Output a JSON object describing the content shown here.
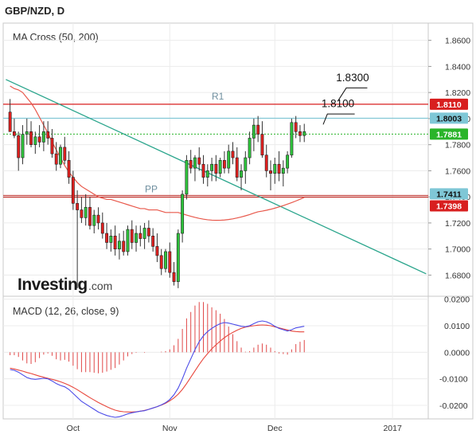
{
  "header": {
    "symbol_label": "GBP/NZD, D"
  },
  "colors": {
    "up": "#2fc43c",
    "down": "#e0201f",
    "wick": "#333333",
    "ma50": "#e8584b",
    "ma200": "#d0b0b0",
    "trendline": "#2aa58c",
    "r1": "#d81f1f",
    "pp": "#c0302b",
    "resistance": "#7fc7d6",
    "current": "#2ab42a",
    "macd": "#4b4be8",
    "signal": "#e8473c",
    "hist": "#e04848"
  },
  "chart_data": [
    {
      "type": "candlestick",
      "title": "MA Cross (50, 200)",
      "ylim": [
        1.665,
        1.872
      ],
      "yticks": [
        "1.6800",
        "1.7000",
        "1.7200",
        "1.7400",
        "1.7600",
        "1.7800",
        "1.8000",
        "1.8200",
        "1.8400",
        "1.8600"
      ],
      "ytick_values": [
        1.68,
        1.7,
        1.72,
        1.74,
        1.76,
        1.78,
        1.8,
        1.82,
        1.84,
        1.86
      ],
      "xticks": [
        {
          "label": "Oct",
          "index": 15
        },
        {
          "label": "Nov",
          "index": 38
        },
        {
          "label": "Dec",
          "index": 63
        },
        {
          "label": "2017",
          "index": 91
        }
      ],
      "x_count": 100,
      "candles": [
        [
          1.805,
          1.815,
          1.79,
          1.79
        ],
        [
          1.79,
          1.8,
          1.785,
          1.787
        ],
        [
          1.787,
          1.79,
          1.76,
          1.77
        ],
        [
          1.77,
          1.795,
          1.765,
          1.788
        ],
        [
          1.788,
          1.8,
          1.78,
          1.79
        ],
        [
          1.79,
          1.798,
          1.778,
          1.78
        ],
        [
          1.78,
          1.79,
          1.773,
          1.786
        ],
        [
          1.786,
          1.795,
          1.778,
          1.782
        ],
        [
          1.782,
          1.798,
          1.775,
          1.79
        ],
        [
          1.79,
          1.798,
          1.78,
          1.785
        ],
        [
          1.785,
          1.792,
          1.77,
          1.773
        ],
        [
          1.773,
          1.782,
          1.76,
          1.765
        ],
        [
          1.765,
          1.78,
          1.762,
          1.778
        ],
        [
          1.778,
          1.786,
          1.765,
          1.768
        ],
        [
          1.768,
          1.775,
          1.75,
          1.755
        ],
        [
          1.755,
          1.76,
          1.73,
          1.735
        ],
        [
          1.735,
          1.745,
          1.67,
          1.73
        ],
        [
          1.73,
          1.74,
          1.72,
          1.724
        ],
        [
          1.724,
          1.742,
          1.718,
          1.732
        ],
        [
          1.732,
          1.74,
          1.715,
          1.718
        ],
        [
          1.718,
          1.73,
          1.712,
          1.726
        ],
        [
          1.726,
          1.732,
          1.715,
          1.72
        ],
        [
          1.72,
          1.728,
          1.708,
          1.712
        ],
        [
          1.712,
          1.72,
          1.7,
          1.705
        ],
        [
          1.705,
          1.715,
          1.698,
          1.71
        ],
        [
          1.71,
          1.718,
          1.695,
          1.7
        ],
        [
          1.7,
          1.712,
          1.692,
          1.706
        ],
        [
          1.706,
          1.714,
          1.695,
          1.698
        ],
        [
          1.698,
          1.718,
          1.695,
          1.715
        ],
        [
          1.715,
          1.722,
          1.7,
          1.705
        ],
        [
          1.705,
          1.718,
          1.698,
          1.712
        ],
        [
          1.712,
          1.718,
          1.702,
          1.708
        ],
        [
          1.708,
          1.72,
          1.7,
          1.716
        ],
        [
          1.716,
          1.722,
          1.705,
          1.71
        ],
        [
          1.71,
          1.716,
          1.698,
          1.702
        ],
        [
          1.702,
          1.712,
          1.69,
          1.695
        ],
        [
          1.695,
          1.7,
          1.68,
          1.685
        ],
        [
          1.685,
          1.7,
          1.682,
          1.698
        ],
        [
          1.698,
          1.705,
          1.678,
          1.682
        ],
        [
          1.682,
          1.69,
          1.672,
          1.675
        ],
        [
          1.675,
          1.715,
          1.67,
          1.712
        ],
        [
          1.712,
          1.745,
          1.705,
          1.742
        ],
        [
          1.742,
          1.772,
          1.738,
          1.768
        ],
        [
          1.768,
          1.776,
          1.758,
          1.762
        ],
        [
          1.762,
          1.772,
          1.752,
          1.77
        ],
        [
          1.77,
          1.778,
          1.76,
          1.765
        ],
        [
          1.765,
          1.772,
          1.75,
          1.755
        ],
        [
          1.755,
          1.765,
          1.748,
          1.76
        ],
        [
          1.76,
          1.77,
          1.752,
          1.765
        ],
        [
          1.765,
          1.772,
          1.752,
          1.758
        ],
        [
          1.758,
          1.77,
          1.755,
          1.768
        ],
        [
          1.768,
          1.775,
          1.758,
          1.762
        ],
        [
          1.762,
          1.78,
          1.758,
          1.775
        ],
        [
          1.775,
          1.782,
          1.765,
          1.77
        ],
        [
          1.77,
          1.778,
          1.752,
          1.755
        ],
        [
          1.755,
          1.765,
          1.745,
          1.76
        ],
        [
          1.76,
          1.775,
          1.75,
          1.77
        ],
        [
          1.77,
          1.79,
          1.765,
          1.785
        ],
        [
          1.785,
          1.8,
          1.775,
          1.795
        ],
        [
          1.795,
          1.802,
          1.782,
          1.788
        ],
        [
          1.788,
          1.798,
          1.77,
          1.772
        ],
        [
          1.772,
          1.78,
          1.755,
          1.76
        ],
        [
          1.76,
          1.768,
          1.745,
          1.758
        ],
        [
          1.758,
          1.77,
          1.75,
          1.765
        ],
        [
          1.765,
          1.775,
          1.752,
          1.758
        ],
        [
          1.758,
          1.768,
          1.748,
          1.762
        ],
        [
          1.762,
          1.775,
          1.758,
          1.772
        ],
        [
          1.772,
          1.8,
          1.77,
          1.797
        ],
        [
          1.797,
          1.802,
          1.785,
          1.79
        ],
        [
          1.79,
          1.795,
          1.782,
          1.787
        ],
        [
          1.787,
          1.796,
          1.782,
          1.79
        ]
      ],
      "ma50": [
        1.825,
        1.823,
        1.822,
        1.82,
        1.816,
        1.812,
        1.807,
        1.801,
        1.795,
        1.789,
        1.782,
        1.776,
        1.77,
        1.764,
        1.759,
        1.755,
        1.751,
        1.748,
        1.746,
        1.744,
        1.742,
        1.74,
        1.739,
        1.738,
        1.738,
        1.737,
        1.736,
        1.735,
        1.734,
        1.733,
        1.732,
        1.731,
        1.731,
        1.73,
        1.73,
        1.73,
        1.729,
        1.728,
        1.728,
        1.728
      ],
      "trendline": {
        "start_index": -1,
        "start_value": 1.83,
        "end_index": 99,
        "end_value": 1.681
      },
      "levels": [
        {
          "name": "R1",
          "value": 1.811,
          "label": "R1",
          "badge": "1.8110"
        },
        {
          "name": "resistance",
          "value": 1.8003,
          "badge": "1.8003"
        },
        {
          "name": "current",
          "value": 1.7881,
          "badge": "1.7881"
        },
        {
          "name": "pivot-resistance",
          "value": 1.7411,
          "badge": "1.7411"
        },
        {
          "name": "PP",
          "value": 1.7398,
          "label": "PP",
          "badge": "1.7398"
        }
      ],
      "annotations": [
        {
          "text": "1.8100",
          "value": 1.81
        },
        {
          "text": "1.8300",
          "value": 1.83
        }
      ],
      "brand": {
        "main": "Investing",
        "suffix": ".com"
      }
    },
    {
      "type": "line",
      "title": "MACD (12, 26, close, 9)",
      "ylim": [
        -0.0245,
        0.0205
      ],
      "yticks": [
        "-0.0200",
        "-0.0100",
        "0.0000",
        "0.0100",
        "0.0200"
      ],
      "ytick_values": [
        -0.02,
        -0.01,
        0.0,
        0.01,
        0.02
      ],
      "macd": [
        -0.0065,
        -0.0068,
        -0.0075,
        -0.0085,
        -0.0095,
        -0.01,
        -0.0102,
        -0.01,
        -0.0098,
        -0.01,
        -0.0108,
        -0.0118,
        -0.0125,
        -0.013,
        -0.014,
        -0.0155,
        -0.017,
        -0.0185,
        -0.0195,
        -0.0205,
        -0.0215,
        -0.0225,
        -0.0232,
        -0.0238,
        -0.0242,
        -0.0245,
        -0.0243,
        -0.0238,
        -0.0232,
        -0.0228,
        -0.0225,
        -0.0222,
        -0.022,
        -0.0215,
        -0.021,
        -0.0205,
        -0.0198,
        -0.019,
        -0.0178,
        -0.016,
        -0.0135,
        -0.01,
        -0.006,
        -0.0025,
        0.001,
        0.004,
        0.0062,
        0.0078,
        0.009,
        0.01,
        0.0108,
        0.0112,
        0.011,
        0.0106,
        0.0102,
        0.0098,
        0.0096,
        0.01,
        0.0108,
        0.0115,
        0.0118,
        0.0115,
        0.0108,
        0.0098,
        0.009,
        0.0085,
        0.008,
        0.0085,
        0.0092,
        0.0095,
        0.0098
      ],
      "signal": [
        -0.006,
        -0.0063,
        -0.0067,
        -0.0071,
        -0.0076,
        -0.008,
        -0.0085,
        -0.009,
        -0.0094,
        -0.0098,
        -0.0102,
        -0.0106,
        -0.0111,
        -0.0117,
        -0.0124,
        -0.0132,
        -0.0141,
        -0.0151,
        -0.0161,
        -0.0171,
        -0.018,
        -0.0189,
        -0.0197,
        -0.0205,
        -0.0212,
        -0.0218,
        -0.0222,
        -0.0224,
        -0.0225,
        -0.0225,
        -0.0224,
        -0.0222,
        -0.0219,
        -0.0215,
        -0.021,
        -0.0205,
        -0.0199,
        -0.0192,
        -0.0183,
        -0.0172,
        -0.0158,
        -0.014,
        -0.0118,
        -0.0094,
        -0.007,
        -0.0046,
        -0.0024,
        -0.0005,
        0.0013,
        0.0028,
        0.0042,
        0.0055,
        0.0066,
        0.0075,
        0.0083,
        0.009,
        0.0095,
        0.0098,
        0.01,
        0.0102,
        0.0103,
        0.0102,
        0.01,
        0.0096,
        0.0092,
        0.0088,
        0.0084,
        0.008,
        0.0078,
        0.0077,
        0.0077
      ],
      "histogram_note": "macd minus signal"
    }
  ]
}
